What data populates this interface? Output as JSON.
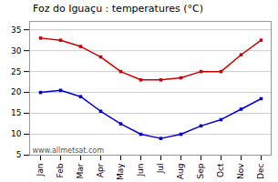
{
  "chart_data": {
    "type": "line",
    "title": "Foz do Iguaçu : temperatures (°C)",
    "categories": [
      "Jan",
      "Feb",
      "Mar",
      "Apr",
      "May",
      "Jun",
      "Jul",
      "Aug",
      "Sep",
      "Oct",
      "Nov",
      "Dec"
    ],
    "series": [
      {
        "color": "#cc0000",
        "marker": "square",
        "values": [
          33,
          32.5,
          31,
          28.5,
          25,
          23,
          23,
          23.5,
          25,
          25,
          29,
          32.5
        ]
      },
      {
        "color": "#0000cc",
        "marker": "square",
        "values": [
          20,
          20.5,
          19,
          15.5,
          12.5,
          10,
          9,
          10,
          12,
          13.5,
          16,
          18.5
        ]
      }
    ],
    "ylim": [
      5,
      37
    ],
    "yticks": [
      5,
      10,
      15,
      20,
      25,
      30,
      35
    ],
    "grid": "y",
    "annotations": [
      "www.allmetsat.com"
    ]
  }
}
